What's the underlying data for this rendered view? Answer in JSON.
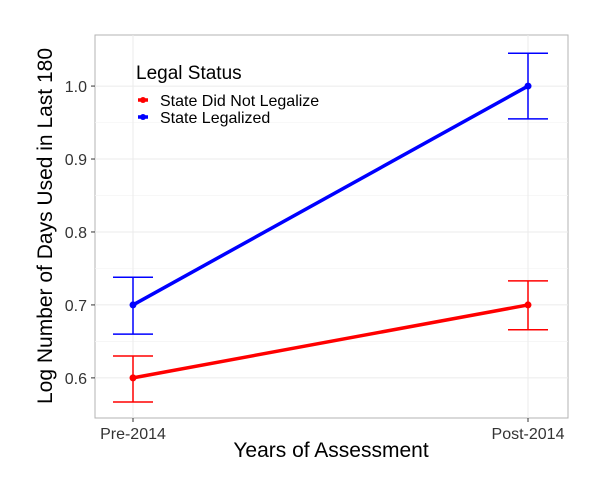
{
  "chart_data": {
    "type": "line",
    "title": "",
    "xlabel": "Years of Assessment",
    "ylabel": "Log Number of Days Used in Last 180",
    "categories": [
      "Pre-2014",
      "Post-2014"
    ],
    "ylim": [
      0.545,
      1.07
    ],
    "yticks": [
      0.6,
      0.7,
      0.8,
      0.9,
      1.0
    ],
    "ytick_labels": [
      "0.6",
      "0.7",
      "0.8",
      "0.9",
      "1.0"
    ],
    "grid": true,
    "legend": {
      "title": "Legal Status",
      "placement": "top-left"
    },
    "series": [
      {
        "name": "State Did Not Legalize",
        "color": "#ff0000",
        "values": [
          0.6,
          0.7
        ],
        "lower": [
          0.567,
          0.666
        ],
        "upper": [
          0.63,
          0.733
        ]
      },
      {
        "name": "State Legalized",
        "color": "#0000ff",
        "values": [
          0.7,
          1.0
        ],
        "lower": [
          0.66,
          0.955
        ],
        "upper": [
          0.738,
          1.045
        ]
      }
    ]
  }
}
